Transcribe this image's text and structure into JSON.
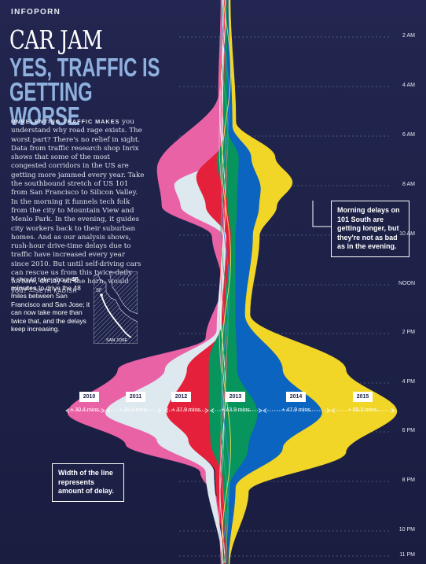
{
  "header": {
    "section": "INFOPORN",
    "title": "CAR JAM",
    "subtitle": "YES, TRAFFIC IS GETTING WORSE"
  },
  "article": {
    "lead": "UNRELENTING TRAFFIC MAKES",
    "body": "you understand why road rage exists. The worst part? There's no relief in sight. Data from traffic research shop Inrix shows that some of the most congested corridors in the US are getting more jammed every year. Take the southbound stretch of US 101 from San Francisco to Silicon Valley. In the morning it funnels tech folk from the city to Mountain View and Menlo Park. In the evening, it guides city workers back to their suburban homes. And as our analysis shows, rush-hour drive-time delays due to traffic have increased every year since 2010. But until self-driving cars can rescue us from this twice-daily torture, do lay off the horn, would you?",
    "byline": "—SETH KADISH"
  },
  "sidebar_note": {
    "part1": "It should take about ",
    "bold1": "45 minutes",
    "part2": " to drive the 48 miles between San Francisco and San Jose; it can now take more than twice that, and the delays keep increasing."
  },
  "map": {
    "sf": "SF",
    "sj": "SAN JOSE"
  },
  "callouts": {
    "morning": "Morning delays on 101 South are getting longer, but they're not as bad as in the evening.",
    "width": "Width of the line represents amount of delay."
  },
  "time_axis": [
    "2 AM",
    "4 AM",
    "6 AM",
    "8 AM",
    "10 AM",
    "NOON",
    "2 PM",
    "4 PM",
    "6 PM",
    "8 PM",
    "10 PM",
    "11 PM"
  ],
  "years": [
    {
      "year": "2010",
      "delay": "30.4 mins.",
      "color": "#ea62a6"
    },
    {
      "year": "2011",
      "delay": "35.4 mins.",
      "color": "#dde8ef"
    },
    {
      "year": "2012",
      "delay": "37.9 mins.",
      "color": "#e5203a"
    },
    {
      "year": "2013",
      "delay": "43.9 mins.",
      "color": "#07945d"
    },
    {
      "year": "2014",
      "delay": "47.9 mins.",
      "color": "#0b64bf"
    },
    {
      "year": "2015",
      "delay": "50.2 mins.",
      "color": "#f1d527"
    }
  ]
}
